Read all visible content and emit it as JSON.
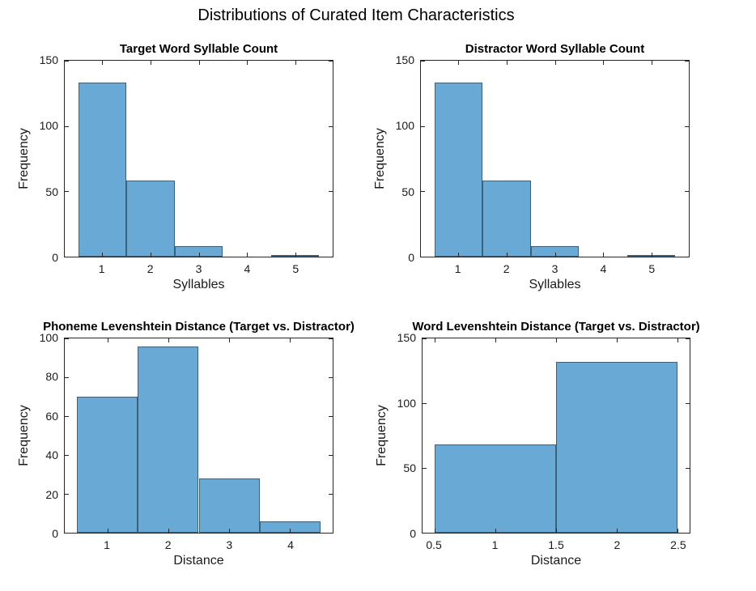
{
  "figure_title": "Distributions of Curated Item Characteristics",
  "colors": {
    "bar_fill": "#69A9D6",
    "bar_edge": "#3F5E78",
    "axis": "#262626",
    "tick_text": "#1A1A1A",
    "title_text": "#000000"
  },
  "chart_data": [
    {
      "type": "histogram",
      "title": "Target Word Syllable Count",
      "xlabel": "Syllables",
      "ylabel": "Frequency",
      "bin_edges": [
        0.5,
        1.5,
        2.5,
        3.5,
        4.5,
        5.5
      ],
      "frequencies": [
        133,
        58,
        8,
        0,
        1
      ],
      "xlim": [
        0.22,
        5.78
      ],
      "ylim": [
        0,
        150
      ],
      "xticks": [
        1,
        2,
        3,
        4,
        5
      ],
      "xtick_labels": [
        "1",
        "2",
        "3",
        "4",
        "5"
      ],
      "yticks": [
        0,
        50,
        100,
        150
      ],
      "grid": false,
      "legend": "none"
    },
    {
      "type": "histogram",
      "title": "Distractor Word Syllable Count",
      "xlabel": "Syllables",
      "ylabel": "Frequency",
      "bin_edges": [
        0.5,
        1.5,
        2.5,
        3.5,
        4.5,
        5.5
      ],
      "frequencies": [
        133,
        58,
        8,
        0,
        1
      ],
      "xlim": [
        0.22,
        5.78
      ],
      "ylim": [
        0,
        150
      ],
      "xticks": [
        1,
        2,
        3,
        4,
        5
      ],
      "xtick_labels": [
        "1",
        "2",
        "3",
        "4",
        "5"
      ],
      "yticks": [
        0,
        50,
        100,
        150
      ],
      "grid": false,
      "legend": "none"
    },
    {
      "type": "histogram",
      "title": "Phoneme Levenshtein Distance (Target vs. Distractor)",
      "xlabel": "Distance",
      "ylabel": "Frequency",
      "bin_edges": [
        0.5,
        1.5,
        2.5,
        3.5,
        4.5
      ],
      "frequencies": [
        70,
        96,
        28,
        6
      ],
      "xlim": [
        0.3,
        4.7
      ],
      "ylim": [
        0,
        100
      ],
      "xticks": [
        1,
        2,
        3,
        4
      ],
      "xtick_labels": [
        "1",
        "2",
        "3",
        "4"
      ],
      "yticks": [
        0,
        20,
        40,
        60,
        80,
        100
      ],
      "grid": false,
      "legend": "none"
    },
    {
      "type": "histogram",
      "title": "Word Levenshtein Distance (Target vs. Distractor)",
      "xlabel": "Distance",
      "ylabel": "Frequency",
      "bin_edges": [
        0.5,
        1.5,
        2.5
      ],
      "frequencies": [
        68,
        132
      ],
      "xlim": [
        0.4,
        2.6
      ],
      "ylim": [
        0,
        150
      ],
      "xticks": [
        0.5,
        1,
        1.5,
        2,
        2.5
      ],
      "xtick_labels": [
        "0.5",
        "1",
        "1.5",
        "2",
        "2.5"
      ],
      "yticks": [
        0,
        50,
        100,
        150
      ],
      "grid": false,
      "legend": "none"
    }
  ]
}
